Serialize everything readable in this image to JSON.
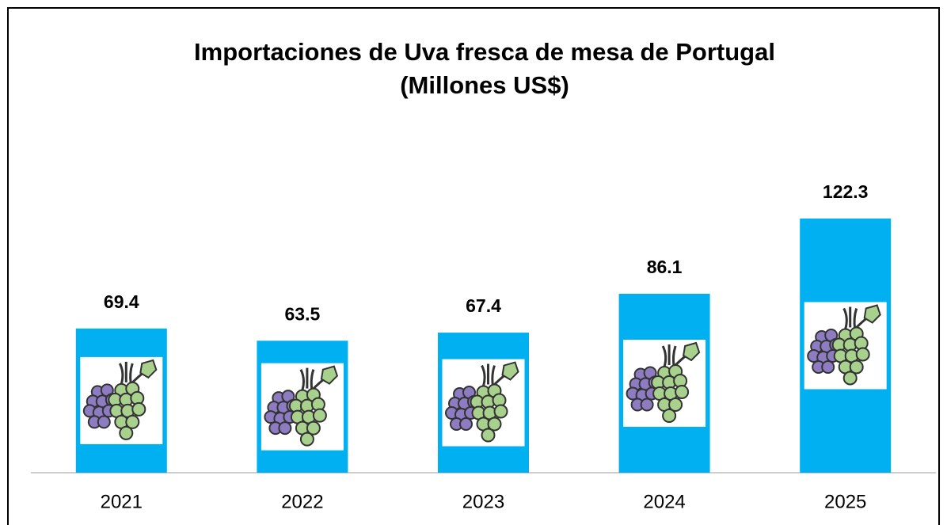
{
  "chart_data": {
    "type": "bar",
    "title": "Importaciones de Uva fresca de mesa de Portugal",
    "subtitle": "(Millones US$)",
    "categories": [
      "2021",
      "2022",
      "2023",
      "2024",
      "2025"
    ],
    "values": [
      69.4,
      63.5,
      67.4,
      86.1,
      122.3
    ],
    "color": "#00b0f0",
    "ylim": [
      0,
      140
    ],
    "grid": false
  }
}
